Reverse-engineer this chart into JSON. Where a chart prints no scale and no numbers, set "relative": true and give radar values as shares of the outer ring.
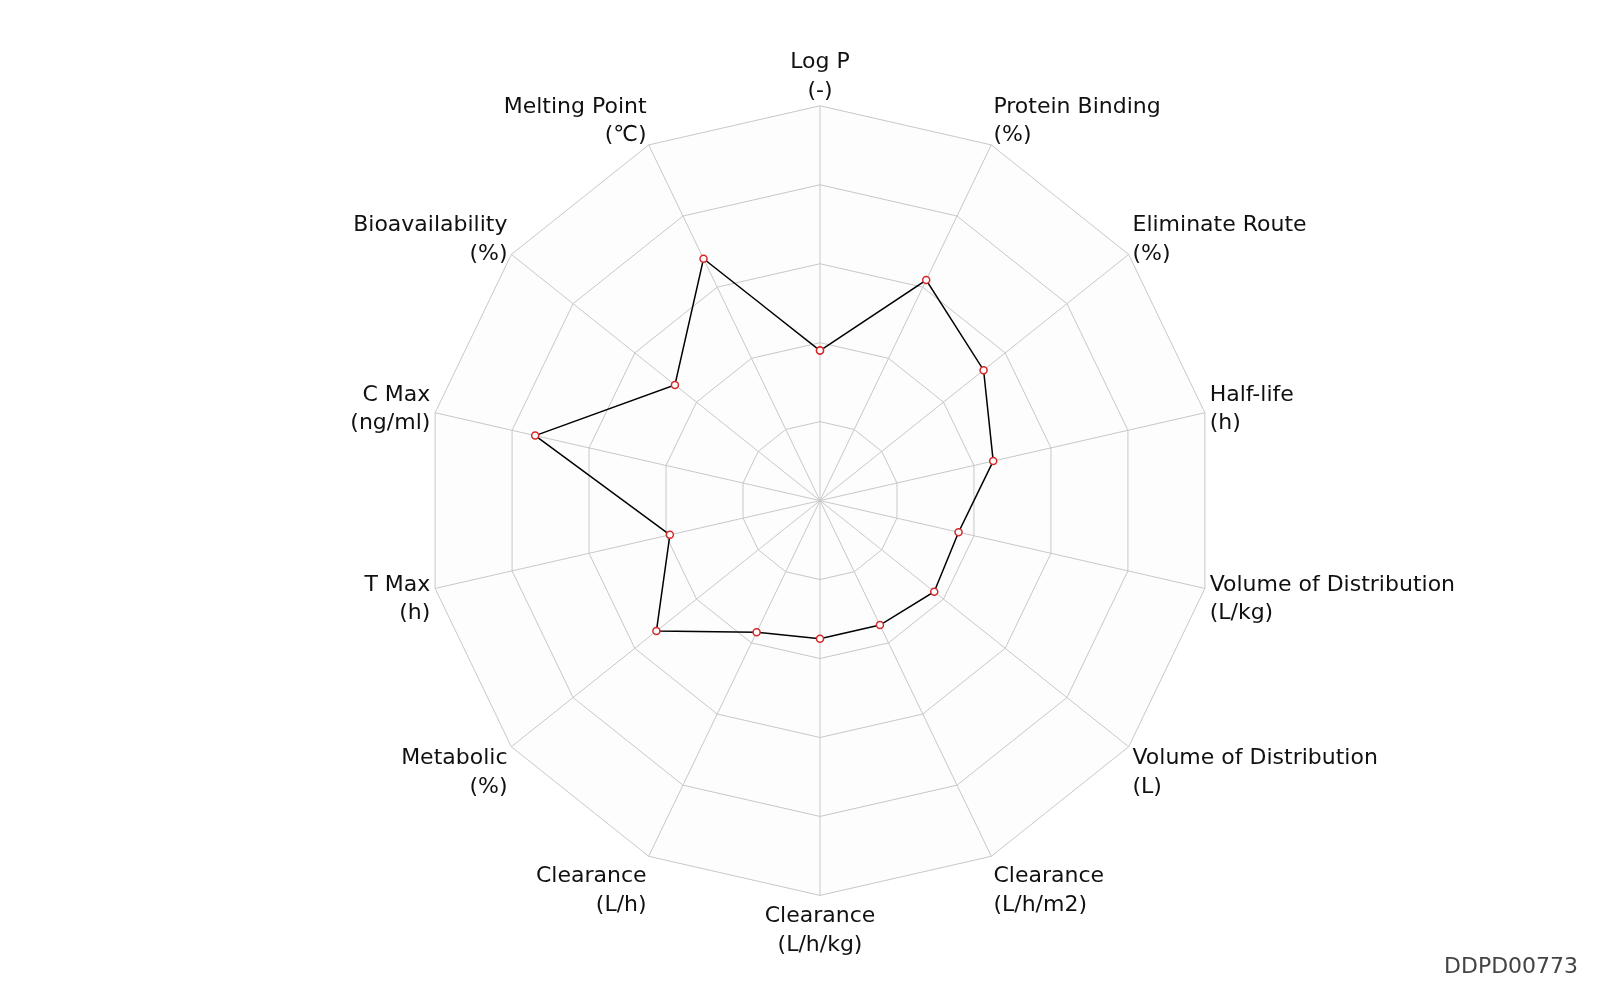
{
  "chart_data": {
    "type": "radar",
    "relative": true,
    "grid": true,
    "marker": "circle",
    "line_style": "solid",
    "categories": [
      "Log P\n(-)",
      "Protein Binding\n(%)",
      "Eliminate Route\n(%)",
      "Half-life\n(h)",
      "Volume of Distribution\n(L/kg)",
      "Volume of Distribution\n(L)",
      "Clearance\n(L/h/m2)",
      "Clearance\n(L/h/kg)",
      "Clearance\n(L/h)",
      "Metabolic\n(%)",
      "T Max\n(h)",
      "C Max\n(ng/ml)",
      "Bioavailability\n(%)",
      "Melting Point\n(℃)"
    ],
    "series": [
      {
        "color": "#000000",
        "values": [
          0.38,
          0.62,
          0.53,
          0.45,
          0.36,
          0.37,
          0.35,
          0.35,
          0.37,
          0.53,
          0.39,
          0.74,
          0.47,
          0.68
        ]
      }
    ],
    "annotations": [
      "DDPD00773"
    ]
  }
}
